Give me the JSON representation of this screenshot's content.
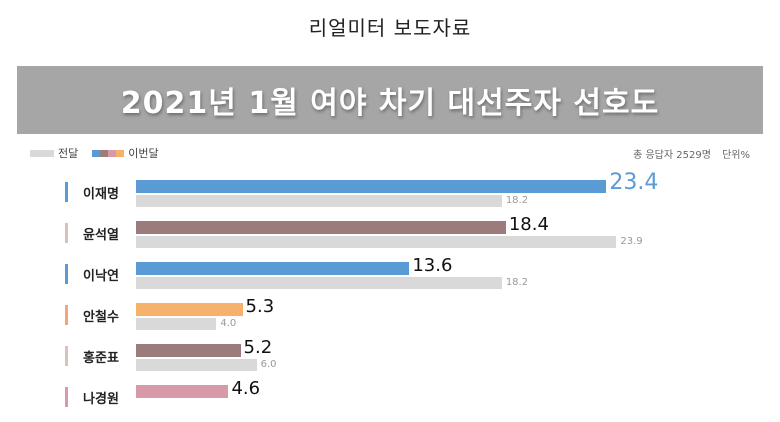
{
  "header": {
    "doc_title": "리얼미터 보도자료"
  },
  "banner": {
    "title": "2021년 1월 여야 차기 대선주자 선호도"
  },
  "legend": {
    "prev_label": "전달",
    "cur_label": "이번달",
    "cur_swatch_colors": [
      "#5b9bd5",
      "#9b7b7b",
      "#d89aa8",
      "#f6b26b"
    ],
    "prev_color": "#d9d9d9"
  },
  "meta": {
    "respondents": "총 응답자 2529명",
    "unit": "단위%"
  },
  "rows": [
    {
      "name": "이재명",
      "current": "23.4",
      "previous": "18.2",
      "color": "#5b9bd5",
      "marker": "#5b9bd5",
      "highlight": true
    },
    {
      "name": "윤석열",
      "current": "18.4",
      "previous": "23.9",
      "color": "#9b7b7b",
      "marker": "#d9c2b8"
    },
    {
      "name": "이낙연",
      "current": "13.6",
      "previous": "18.2",
      "color": "#5b9bd5",
      "marker": "#5b9bd5"
    },
    {
      "name": "안철수",
      "current": "5.3",
      "previous": "4.0",
      "color": "#f6b26b",
      "marker": "#f2a77a"
    },
    {
      "name": "홍준표",
      "current": "5.2",
      "previous": "6.0",
      "color": "#9b7b7b",
      "marker": "#d9c2b8"
    },
    {
      "name": "나경원",
      "current": "4.6",
      "previous": null,
      "color": "#d89aa8",
      "marker": "#d89aa8"
    }
  ],
  "chart_data": {
    "type": "bar",
    "title": "2021년 1월 여야 차기 대선주자 선호도",
    "subtitle": "리얼미터 보도자료",
    "categories": [
      "이재명",
      "윤석열",
      "이낙연",
      "안철수",
      "홍준표",
      "나경원"
    ],
    "series": [
      {
        "name": "이번달",
        "values": [
          23.4,
          18.4,
          13.6,
          5.3,
          5.2,
          4.6
        ]
      },
      {
        "name": "전달",
        "values": [
          18.2,
          23.9,
          18.2,
          4.0,
          6.0,
          null
        ]
      }
    ],
    "orientation": "horizontal",
    "annotations": [
      "총 응답자 2529명",
      "단위%"
    ],
    "xlabel": "",
    "ylabel": "",
    "legend_position": "top-left",
    "grid": false
  }
}
